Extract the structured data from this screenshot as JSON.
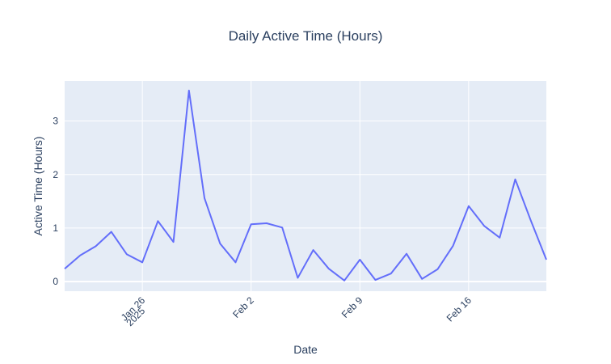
{
  "chart_data": {
    "type": "line",
    "title": "Daily Active Time (Hours)",
    "xlabel": "Date",
    "ylabel": "Active Time (Hours)",
    "x": [
      "2025-01-21",
      "2025-01-22",
      "2025-01-23",
      "2025-01-24",
      "2025-01-25",
      "2025-01-26",
      "2025-01-27",
      "2025-01-28",
      "2025-01-29",
      "2025-01-30",
      "2025-01-31",
      "2025-02-01",
      "2025-02-02",
      "2025-02-03",
      "2025-02-04",
      "2025-02-05",
      "2025-02-06",
      "2025-02-07",
      "2025-02-08",
      "2025-02-09",
      "2025-02-10",
      "2025-02-11",
      "2025-02-12",
      "2025-02-13",
      "2025-02-14",
      "2025-02-15",
      "2025-02-16",
      "2025-02-17",
      "2025-02-18",
      "2025-02-19",
      "2025-02-20",
      "2025-02-21"
    ],
    "series": [
      {
        "values": [
          0.24,
          0.49,
          0.66,
          0.93,
          0.51,
          0.36,
          1.13,
          0.74,
          3.57,
          1.56,
          0.71,
          0.36,
          1.07,
          1.09,
          1.01,
          0.07,
          0.59,
          0.24,
          0.02,
          0.41,
          0.03,
          0.15,
          0.52,
          0.05,
          0.23,
          0.67,
          1.41,
          1.04,
          0.82,
          1.91,
          1.14,
          0.41
        ],
        "color": "#636efa"
      }
    ],
    "xlim": [
      "2025-01-21",
      "2025-02-21"
    ],
    "ylim": [
      -0.18,
      3.75
    ],
    "xticks": [
      {
        "date": "2025-01-26",
        "label": "Jan 26",
        "sublabel": "2025"
      },
      {
        "date": "2025-02-02",
        "label": "Feb 2",
        "sublabel": ""
      },
      {
        "date": "2025-02-09",
        "label": "Feb 9",
        "sublabel": ""
      },
      {
        "date": "2025-02-16",
        "label": "Feb 16",
        "sublabel": ""
      }
    ],
    "yticks": [
      0,
      1,
      2,
      3
    ],
    "grid": true,
    "colors": {
      "plot_bg": "#e5ecf6",
      "grid": "#ffffff",
      "text": "#2a3f5f"
    }
  }
}
